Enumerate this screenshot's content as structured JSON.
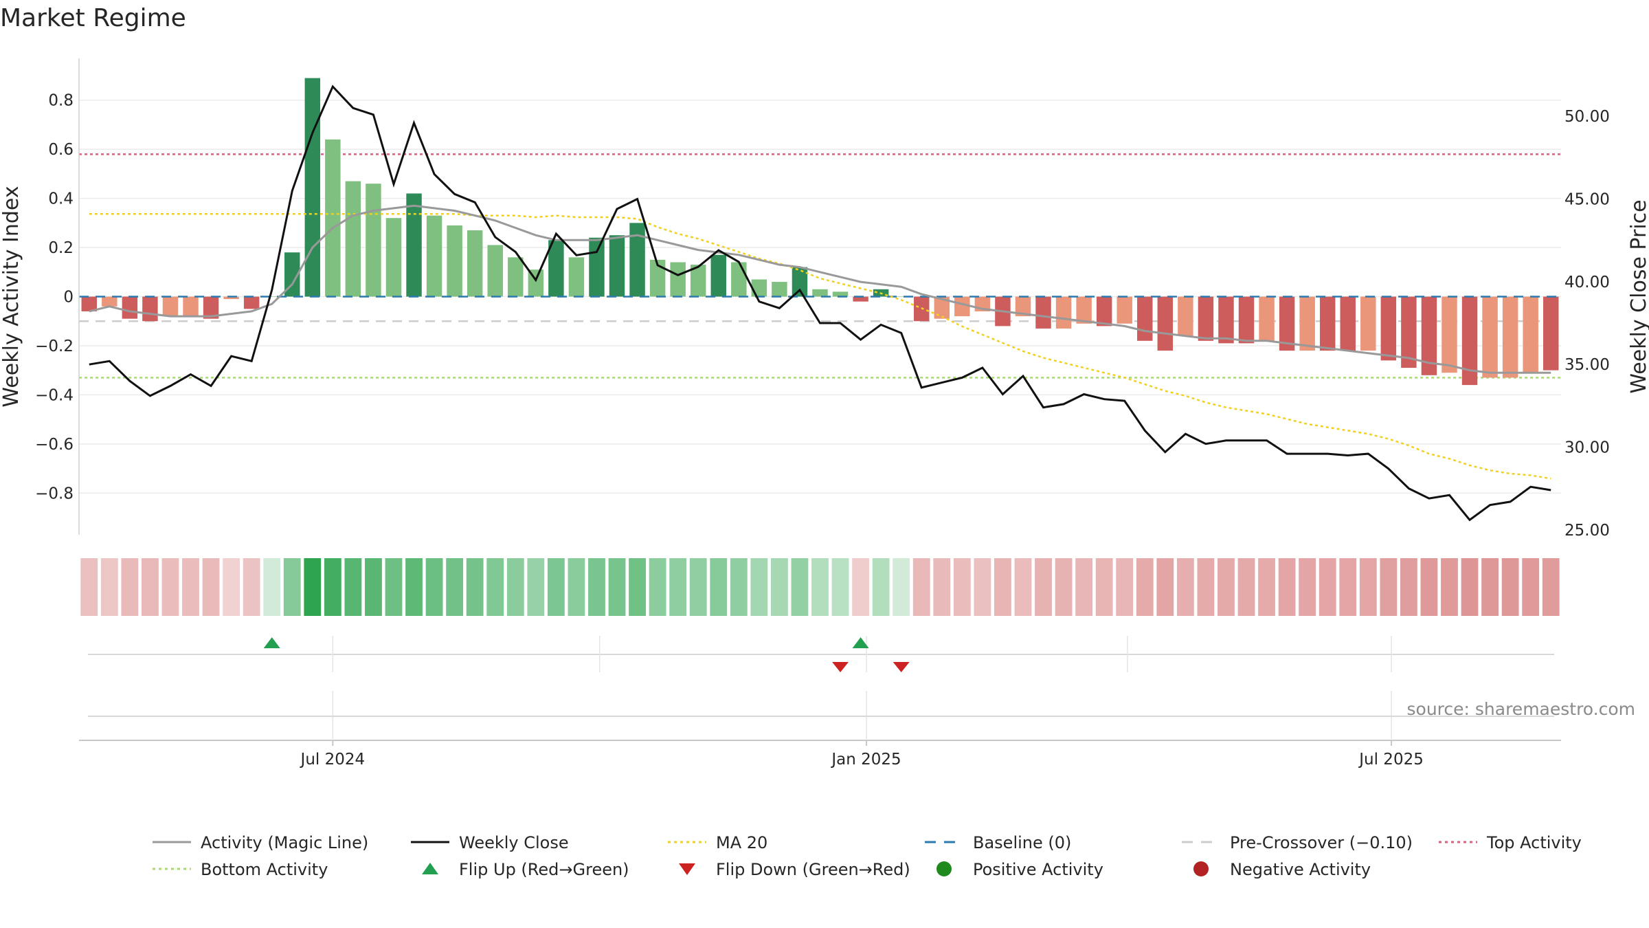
{
  "title": "Market Regime",
  "source": "source: sharemaestro.com",
  "colors": {
    "pos_strong": "#2e8b57",
    "pos_light": "#7fbf7f",
    "neg_strong": "#cd5c5c",
    "neg_light": "#e9967a",
    "magic": "#999999",
    "close": "#111111",
    "ma20": "#f0d020",
    "baseline": "#2a7ab0",
    "precross": "#cccccc",
    "top": "#d9607a",
    "bottom": "#a9d970",
    "flip_up": "#22a050",
    "flip_down": "#cc2222"
  },
  "chart_data": {
    "type": "bar+line",
    "start_week": "2024-04-08",
    "x_ticks": [
      "Jul 2024",
      "Jan 2025",
      "Jul 2025"
    ],
    "left_axis": {
      "label": "Weekly Activity Index",
      "range": [
        -0.97,
        0.97
      ],
      "ticks": [
        -0.8,
        -0.6,
        -0.4,
        -0.2,
        0,
        0.2,
        0.4,
        0.6,
        0.8
      ],
      "tick_labels": [
        "−0.8",
        "−0.6",
        "−0.4",
        "−0.2",
        "0",
        "0.2",
        "0.4",
        "0.6",
        "0.8"
      ]
    },
    "right_axis": {
      "label": "Weekly Close Price",
      "range": [
        24.7,
        53.5
      ],
      "ticks": [
        25,
        30,
        35,
        40,
        45,
        50
      ],
      "tick_labels": [
        "25.00",
        "30.00",
        "35.00",
        "40.00",
        "45.00",
        "50.00"
      ]
    },
    "activity": [
      -0.06,
      -0.04,
      -0.09,
      -0.1,
      -0.08,
      -0.08,
      -0.09,
      -0.01,
      -0.05,
      0.0,
      0.18,
      0.89,
      0.64,
      0.47,
      0.46,
      0.32,
      0.42,
      0.33,
      0.29,
      0.27,
      0.21,
      0.16,
      0.11,
      0.23,
      0.16,
      0.24,
      0.25,
      0.3,
      0.15,
      0.14,
      0.13,
      0.17,
      0.14,
      0.07,
      0.06,
      0.12,
      0.03,
      0.02,
      -0.02,
      0.03,
      0.0,
      -0.1,
      -0.09,
      -0.08,
      -0.06,
      -0.12,
      -0.08,
      -0.13,
      -0.13,
      -0.11,
      -0.12,
      -0.11,
      -0.18,
      -0.22,
      -0.16,
      -0.18,
      -0.19,
      -0.19,
      -0.18,
      -0.22,
      -0.22,
      -0.22,
      -0.22,
      -0.22,
      -0.26,
      -0.29,
      -0.32,
      -0.31,
      -0.36,
      -0.33,
      -0.33,
      -0.31,
      -0.3
    ],
    "bar_shade": [
      "strong",
      "light",
      "strong",
      "strong",
      "light",
      "light",
      "strong",
      "light",
      "strong",
      "light",
      "strong",
      "strong",
      "light",
      "light",
      "light",
      "light",
      "strong",
      "light",
      "light",
      "light",
      "light",
      "light",
      "light",
      "strong",
      "light",
      "strong",
      "strong",
      "strong",
      "light",
      "light",
      "light",
      "strong",
      "light",
      "light",
      "light",
      "strong",
      "light",
      "light",
      "strong",
      "strong",
      "light",
      "strong",
      "light",
      "light",
      "light",
      "strong",
      "light",
      "strong",
      "light",
      "light",
      "strong",
      "light",
      "strong",
      "strong",
      "light",
      "strong",
      "strong",
      "strong",
      "light",
      "strong",
      "light",
      "strong",
      "strong",
      "light",
      "strong",
      "strong",
      "strong",
      "light",
      "strong",
      "light",
      "light",
      "light",
      "strong"
    ],
    "magic_line": [
      -0.06,
      -0.04,
      -0.06,
      -0.07,
      -0.08,
      -0.08,
      -0.08,
      -0.07,
      -0.06,
      -0.03,
      0.05,
      0.2,
      0.28,
      0.33,
      0.35,
      0.36,
      0.37,
      0.36,
      0.35,
      0.33,
      0.31,
      0.28,
      0.25,
      0.23,
      0.23,
      0.23,
      0.24,
      0.25,
      0.23,
      0.21,
      0.19,
      0.18,
      0.17,
      0.15,
      0.13,
      0.12,
      0.1,
      0.08,
      0.06,
      0.05,
      0.04,
      0.01,
      -0.01,
      -0.03,
      -0.05,
      -0.06,
      -0.07,
      -0.08,
      -0.09,
      -0.1,
      -0.11,
      -0.12,
      -0.14,
      -0.15,
      -0.16,
      -0.17,
      -0.17,
      -0.18,
      -0.18,
      -0.19,
      -0.2,
      -0.21,
      -0.22,
      -0.23,
      -0.24,
      -0.25,
      -0.27,
      -0.28,
      -0.3,
      -0.31,
      -0.31,
      -0.31,
      -0.31
    ],
    "weekly_close": [
      35.0,
      35.2,
      34.0,
      33.1,
      33.7,
      34.4,
      33.7,
      35.5,
      35.2,
      39.5,
      45.5,
      49.0,
      51.8,
      50.5,
      50.1,
      45.9,
      49.6,
      46.5,
      45.3,
      44.8,
      42.7,
      41.8,
      40.1,
      42.9,
      41.6,
      41.8,
      44.4,
      45.0,
      41.0,
      40.4,
      40.9,
      41.9,
      41.2,
      38.8,
      38.4,
      39.5,
      37.5,
      37.5,
      36.5,
      37.4,
      36.9,
      33.6,
      33.9,
      34.2,
      34.8,
      33.2,
      34.3,
      32.4,
      32.6,
      33.2,
      32.9,
      32.8,
      31.0,
      29.7,
      30.8,
      30.2,
      30.4,
      30.4,
      30.4,
      29.6,
      29.6,
      29.6,
      29.5,
      29.6,
      28.7,
      27.5,
      26.9,
      27.1,
      25.6,
      26.5,
      26.7,
      27.6,
      27.4
    ],
    "ma20": [
      44.1,
      44.1,
      44.1,
      44.1,
      44.1,
      44.1,
      44.1,
      44.1,
      44.1,
      44.1,
      44.1,
      44.1,
      44.1,
      44.1,
      44.1,
      44.1,
      44.1,
      44.1,
      44.1,
      44.0,
      44.0,
      44.0,
      43.9,
      44.0,
      43.9,
      43.9,
      43.9,
      43.8,
      43.3,
      42.9,
      42.6,
      42.2,
      41.8,
      41.4,
      41.1,
      40.7,
      40.2,
      39.9,
      39.6,
      39.3,
      38.9,
      38.4,
      37.9,
      37.3,
      36.8,
      36.3,
      35.8,
      35.4,
      35.1,
      34.8,
      34.5,
      34.2,
      33.8,
      33.4,
      33.1,
      32.7,
      32.4,
      32.2,
      32.0,
      31.7,
      31.4,
      31.2,
      31.0,
      30.8,
      30.5,
      30.1,
      29.6,
      29.3,
      28.9,
      28.6,
      28.4,
      28.3,
      28.1
    ],
    "baseline": 0,
    "pre_crossover": -0.1,
    "top_activity": 0.58,
    "bottom_activity": -0.33,
    "flip_up_weeks": [
      9,
      38
    ],
    "flip_down_weeks": [
      37,
      40
    ]
  },
  "legend": [
    {
      "key": "magic",
      "label": "Activity (Magic Line)",
      "kind": "solid"
    },
    {
      "key": "close",
      "label": "Weekly Close",
      "kind": "solid"
    },
    {
      "key": "ma20",
      "label": "MA 20",
      "kind": "dotted"
    },
    {
      "key": "baseline",
      "label": "Baseline (0)",
      "kind": "dashed"
    },
    {
      "key": "precross",
      "label": "Pre-Crossover (−0.10)",
      "kind": "dashed"
    },
    {
      "key": "top",
      "label": "Top Activity",
      "kind": "dotted"
    },
    {
      "key": "bottom",
      "label": "Bottom Activity",
      "kind": "dotted"
    },
    {
      "key": "flip_up",
      "label": "Flip Up (Red→Green)",
      "kind": "tri-up"
    },
    {
      "key": "flip_down",
      "label": "Flip Down (Green→Red)",
      "kind": "tri-down"
    },
    {
      "key": "pos_dot",
      "label": "Positive Activity",
      "kind": "dot",
      "color": "#1e8a1e"
    },
    {
      "key": "neg_dot",
      "label": "Negative Activity",
      "kind": "dot",
      "color": "#b22222"
    }
  ]
}
